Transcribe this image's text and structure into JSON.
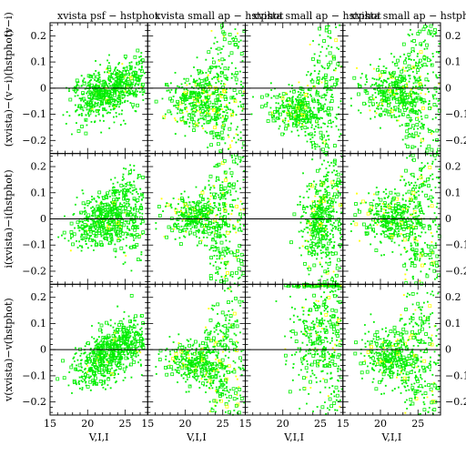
{
  "chart_data": {
    "type": "scatter",
    "grid": false,
    "rows": 3,
    "cols": 4,
    "xlim": [
      15,
      28
    ],
    "ylim": [
      -0.25,
      0.25
    ],
    "xticks": [
      15,
      20,
      25
    ],
    "xtick_labels": [
      "15",
      "20",
      "25"
    ],
    "yticks": [
      0.2,
      0.1,
      0,
      -0.1,
      -0.2
    ],
    "ytick_labels": [
      "0.2",
      "0.1",
      "0",
      "−0.1",
      "−0.2"
    ],
    "xlabel": "V,I,I",
    "ylabels": [
      "(xvista)−(v−i)(hstphot)",
      "i(xvista)−i(hstphot)",
      "v(xvista)−v(hstphot)"
    ],
    "left_edge_label": "(v−i)",
    "top_titles": [
      "xvista psf − hstphot",
      "xvista small ap − hstphot",
      "xvista small ap − hstphot",
      "xvista small ap − hstphot"
    ],
    "reference_line_y": 0,
    "colors": {
      "main": "#00ee00",
      "highlight": "#ffff00",
      "axis": "#000000"
    },
    "series": [
      {
        "name": "",
        "marker": "square",
        "color": "#00ee00"
      },
      {
        "name": "",
        "marker": "square",
        "color": "#ffff00"
      }
    ],
    "panel_distributions": [
      {
        "row": 0,
        "col": 0,
        "x_center": 22,
        "x_spread": 2.0,
        "y_center": -0.02,
        "y_spread": 0.05,
        "slope": 0.01,
        "fan": 0.0,
        "yellow_fraction": 0.02
      },
      {
        "row": 0,
        "col": 1,
        "x_center": 22.5,
        "x_spread": 2.5,
        "y_center": -0.05,
        "y_spread": 0.05,
        "slope": 0.0,
        "fan": 0.04,
        "yellow_fraction": 0.12
      },
      {
        "row": 0,
        "col": 2,
        "x_center": 23.0,
        "x_spread": 2.5,
        "y_center": -0.08,
        "y_spread": 0.04,
        "slope": 0.0,
        "fan": 0.06,
        "yellow_fraction": 0.1
      },
      {
        "row": 0,
        "col": 3,
        "x_center": 22.5,
        "x_spread": 2.5,
        "y_center": -0.02,
        "y_spread": 0.05,
        "slope": 0.0,
        "fan": 0.04,
        "yellow_fraction": 0.08
      },
      {
        "row": 1,
        "col": 0,
        "x_center": 22,
        "x_spread": 2.0,
        "y_center": 0.0,
        "y_spread": 0.05,
        "slope": 0.01,
        "fan": 0.01,
        "yellow_fraction": 0.02
      },
      {
        "row": 1,
        "col": 1,
        "x_center": 22.5,
        "x_spread": 2.5,
        "y_center": 0.0,
        "y_spread": 0.04,
        "slope": 0.0,
        "fan": 0.04,
        "yellow_fraction": 0.12
      },
      {
        "row": 1,
        "col": 2,
        "x_center": 25.0,
        "x_spread": 1.5,
        "y_center": 0.0,
        "y_spread": 0.08,
        "slope": 0.0,
        "fan": 0.05,
        "yellow_fraction": 0.1
      },
      {
        "row": 1,
        "col": 3,
        "x_center": 22.5,
        "x_spread": 2.5,
        "y_center": 0.0,
        "y_spread": 0.05,
        "slope": 0.0,
        "fan": 0.04,
        "yellow_fraction": 0.08
      },
      {
        "row": 2,
        "col": 0,
        "x_center": 22,
        "x_spread": 2.0,
        "y_center": -0.03,
        "y_spread": 0.05,
        "slope": 0.015,
        "fan": 0.0,
        "yellow_fraction": 0.02
      },
      {
        "row": 2,
        "col": 1,
        "x_center": 22.5,
        "x_spread": 2.5,
        "y_center": -0.05,
        "y_spread": 0.04,
        "slope": 0.0,
        "fan": 0.04,
        "yellow_fraction": 0.12
      },
      {
        "row": 2,
        "col": 2,
        "x_center": 25.0,
        "x_spread": 2.0,
        "y_center": 0.05,
        "y_spread": 0.12,
        "slope": 0.0,
        "fan": 0.05,
        "yellow_fraction": 0.08,
        "top_band": true
      },
      {
        "row": 2,
        "col": 3,
        "x_center": 22.5,
        "x_spread": 2.5,
        "y_center": -0.03,
        "y_spread": 0.05,
        "slope": 0.0,
        "fan": 0.04,
        "yellow_fraction": 0.08
      }
    ]
  }
}
